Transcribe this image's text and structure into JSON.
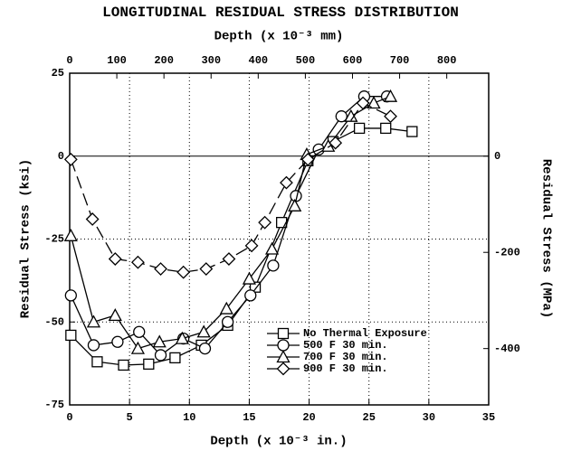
{
  "chart_data": {
    "type": "line",
    "title": "LONGITUDINAL RESIDUAL STRESS DISTRIBUTION",
    "x_label": "Depth (x 10⁻³ in.)",
    "x2_label": "Depth (x 10⁻³ mm)",
    "y_label": "Residual Stress (ksi)",
    "y2_label": "Residual Stress (MPa)",
    "xlim": [
      0,
      35
    ],
    "xticks": [
      0,
      5,
      10,
      15,
      20,
      25,
      30,
      35
    ],
    "x2lim": [
      0,
      889
    ],
    "x2ticks": [
      0,
      100,
      200,
      300,
      400,
      500,
      600,
      700,
      800
    ],
    "ylim": [
      -75,
      25
    ],
    "yticks": [
      -75,
      -50,
      -25,
      0,
      25
    ],
    "y2lim": [
      -517.1,
      172.4
    ],
    "y2ticks": [
      -400,
      -200,
      0
    ],
    "grid": true,
    "legend": "lower right",
    "series": [
      {
        "name": "No Thermal Exposure",
        "color": "#000000",
        "marker": "square",
        "dashed": false,
        "x": [
          0.1,
          2.3,
          4.5,
          6.6,
          8.8,
          11.0,
          13.2,
          15.5,
          17.7,
          19.9,
          22.0,
          24.2,
          26.4,
          28.6
        ],
        "values": [
          -54,
          -62,
          -63,
          -62.7,
          -60.8,
          -57,
          -51,
          -39.5,
          -20,
          -1.4,
          4.4,
          8.4,
          8.4,
          7.4
        ]
      },
      {
        "name": "500 F 30 min.",
        "color": "#000000",
        "marker": "circle",
        "dashed": false,
        "x": [
          0.1,
          2.0,
          4.0,
          5.8,
          7.6,
          9.5,
          11.3,
          13.2,
          15.1,
          17.0,
          18.9,
          20.8,
          22.7,
          24.6,
          26.5
        ],
        "values": [
          -42,
          -57,
          -56,
          -53,
          -60,
          -55,
          -58,
          -50,
          -42,
          -33,
          -12,
          2,
          12,
          18,
          18
        ]
      },
      {
        "name": "700 F 30 min.",
        "color": "#000000",
        "marker": "triangle",
        "dashed": false,
        "x": [
          0.1,
          2.0,
          3.8,
          5.7,
          7.5,
          9.4,
          11.2,
          13.1,
          15.0,
          16.9,
          18.8,
          19.8,
          21.6,
          23.5,
          25.4,
          26.8
        ],
        "values": [
          -24,
          -50,
          -48,
          -58,
          -56,
          -55,
          -53,
          -46,
          -37,
          -28,
          -15,
          0.5,
          3,
          12,
          16,
          18
        ]
      },
      {
        "name": "900 F 30 min.",
        "color": "#000000",
        "marker": "diamond",
        "dashed": true,
        "x": [
          0.1,
          1.9,
          3.8,
          5.7,
          7.6,
          9.5,
          11.4,
          13.3,
          15.2,
          16.3,
          18.1,
          19.9,
          22.2,
          24.5,
          26.8
        ],
        "values": [
          -1,
          -19,
          -31,
          -32,
          -34,
          -35,
          -34,
          -31,
          -27,
          -20,
          -8,
          -1,
          4,
          16,
          12
        ]
      }
    ]
  }
}
